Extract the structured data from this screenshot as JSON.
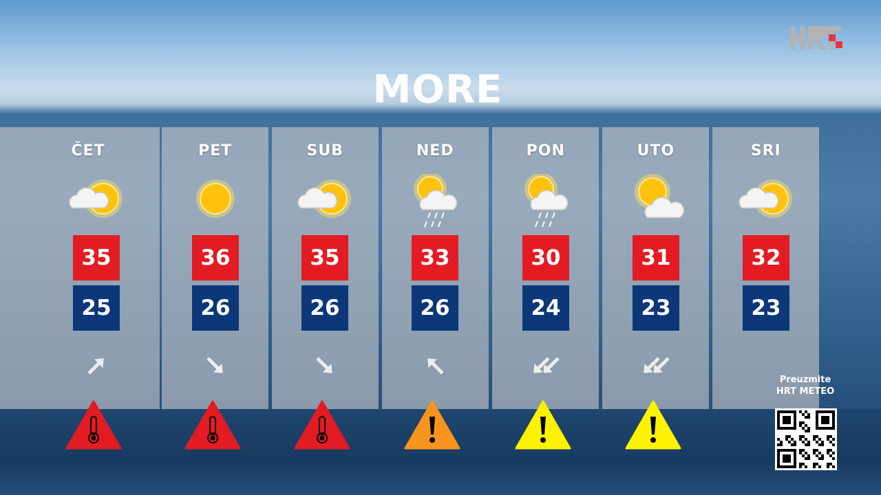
{
  "title": "MORE",
  "logo": {
    "text": "HRT",
    "accent": "#e8353a"
  },
  "colors": {
    "max": "#e31b23",
    "min": "#0c3778",
    "warn_red": "#e31b23",
    "warn_orange": "#f7941d",
    "warn_yellow": "#fff200"
  },
  "days": [
    {
      "label": "ČET",
      "weather": "partly-cloudy-icon",
      "max": "35",
      "min": "25",
      "wind": "northeast",
      "wind_double": false,
      "warning": "red-heat"
    },
    {
      "label": "PET",
      "weather": "sunny-icon",
      "max": "36",
      "min": "26",
      "wind": "southeast",
      "wind_double": false,
      "warning": "red-heat"
    },
    {
      "label": "SUB",
      "weather": "partly-cloudy-icon",
      "max": "35",
      "min": "26",
      "wind": "southeast",
      "wind_double": false,
      "warning": "red-heat"
    },
    {
      "label": "NED",
      "weather": "sun-cloud-rain-icon",
      "max": "33",
      "min": "26",
      "wind": "northwest",
      "wind_double": false,
      "warning": "orange-general"
    },
    {
      "label": "PON",
      "weather": "sun-cloud-rain-icon",
      "max": "30",
      "min": "24",
      "wind": "southwest",
      "wind_double": true,
      "warning": "yellow-general"
    },
    {
      "label": "UTO",
      "weather": "sun-behind-cloud-icon",
      "max": "31",
      "min": "23",
      "wind": "southwest",
      "wind_double": true,
      "warning": "yellow-general"
    },
    {
      "label": "SRI",
      "weather": "partly-cloudy-icon",
      "max": "32",
      "min": "23",
      "wind": null,
      "wind_double": false,
      "warning": null
    }
  ],
  "app_promo": {
    "line1": "Preuzmite",
    "line2": "HRT METEO"
  }
}
